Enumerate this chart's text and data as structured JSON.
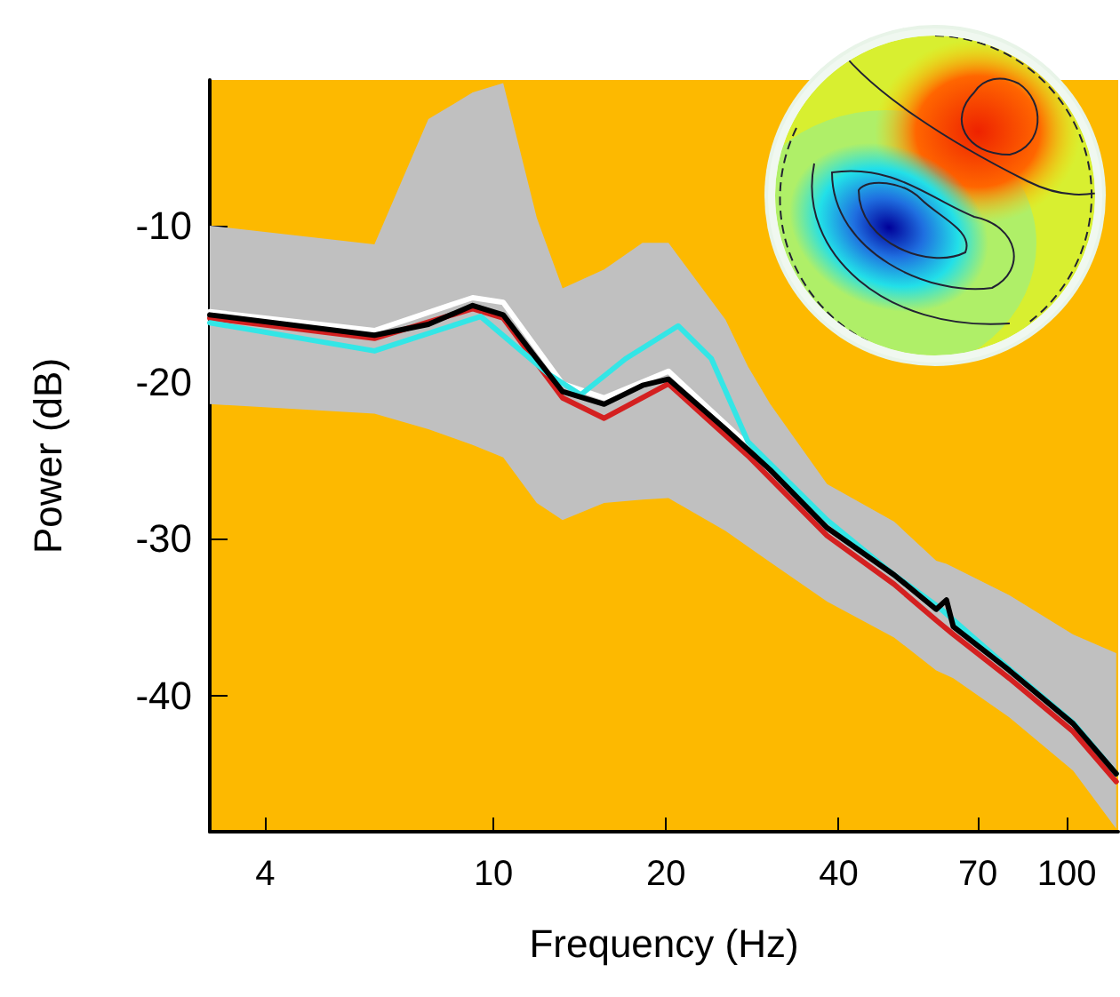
{
  "chart_data": {
    "type": "line",
    "xlabel": "Frequency (Hz)",
    "ylabel": "Power (dB)",
    "xlim": [
      3.2,
      123
    ],
    "xticks": [
      4,
      10,
      20,
      40,
      70,
      100
    ],
    "ylim": [
      -48.7,
      -0.7
    ],
    "yticks": [
      -10,
      -20,
      -30,
      -40
    ],
    "log": "x",
    "grid": false,
    "marker": "none",
    "line_style": "solid",
    "series": [
      {
        "color": "#ffffff",
        "x": [
          3.2,
          6.2,
          9.2,
          10.4,
          13.2,
          15.6,
          20.2,
          27.8
        ],
        "values": [
          -15.5,
          -16.7,
          -14.6,
          -14.9,
          -20.1,
          -21.0,
          -19.3,
          -24.0
        ]
      },
      {
        "color": "#d42020",
        "x": [
          3.2,
          6.2,
          9.2,
          10.4,
          13.2,
          15.6,
          20.2,
          27.8,
          38.2,
          50,
          59.2,
          63.4,
          79.4,
          102.6,
          122
        ],
        "values": [
          -15.9,
          -17.2,
          -15.3,
          -15.9,
          -21.0,
          -22.3,
          -20.1,
          -24.7,
          -29.8,
          -32.9,
          -35.2,
          -36.1,
          -38.9,
          -42.3,
          -45.5
        ]
      },
      {
        "color": "#33e6e6",
        "x": [
          3.2,
          6.2,
          9.5,
          12.5,
          14.2,
          17,
          21,
          24,
          27.8,
          38.2,
          50,
          60,
          80,
          103,
          122
        ],
        "values": [
          -16.2,
          -18.0,
          -15.8,
          -19.5,
          -20.8,
          -18.5,
          -16.4,
          -18.5,
          -23.8,
          -28.8,
          -32.3,
          -34.4,
          -38.4,
          -41.8,
          -45.0
        ]
      },
      {
        "color": "#000000",
        "x": [
          3.2,
          6.2,
          7.7,
          9.2,
          10.4,
          11.9,
          13.2,
          15.6,
          18.2,
          20.2,
          25.4,
          27.8,
          30.4,
          38.2,
          50,
          59.2,
          61.7,
          63.4,
          79.4,
          102.6,
          122
        ],
        "values": [
          -15.7,
          -17.0,
          -16.3,
          -15.1,
          -15.7,
          -18.5,
          -20.6,
          -21.4,
          -20.2,
          -19.8,
          -23.0,
          -24.3,
          -25.6,
          -29.3,
          -32.3,
          -34.5,
          -33.9,
          -35.6,
          -38.4,
          -41.8,
          -45.0
        ],
        "upper": [
          -10.0,
          -11.2,
          -3.2,
          -1.5,
          -0.9,
          -9.5,
          -14.0,
          -12.8,
          -11.1,
          -11.1,
          -16.0,
          -19.0,
          -21.4,
          -26.5,
          -28.9,
          -31.4,
          -31.6,
          -31.8,
          -33.6,
          -36.1,
          -37.3
        ],
        "lower": [
          -21.4,
          -22.0,
          -23.0,
          -24.0,
          -24.8,
          -27.7,
          -28.8,
          -27.7,
          -27.5,
          -27.4,
          -29.5,
          -30.5,
          -31.5,
          -34.0,
          -36.3,
          -38.4,
          -38.7,
          -38.9,
          -41.4,
          -44.8,
          -48.5
        ]
      }
    ]
  }
}
